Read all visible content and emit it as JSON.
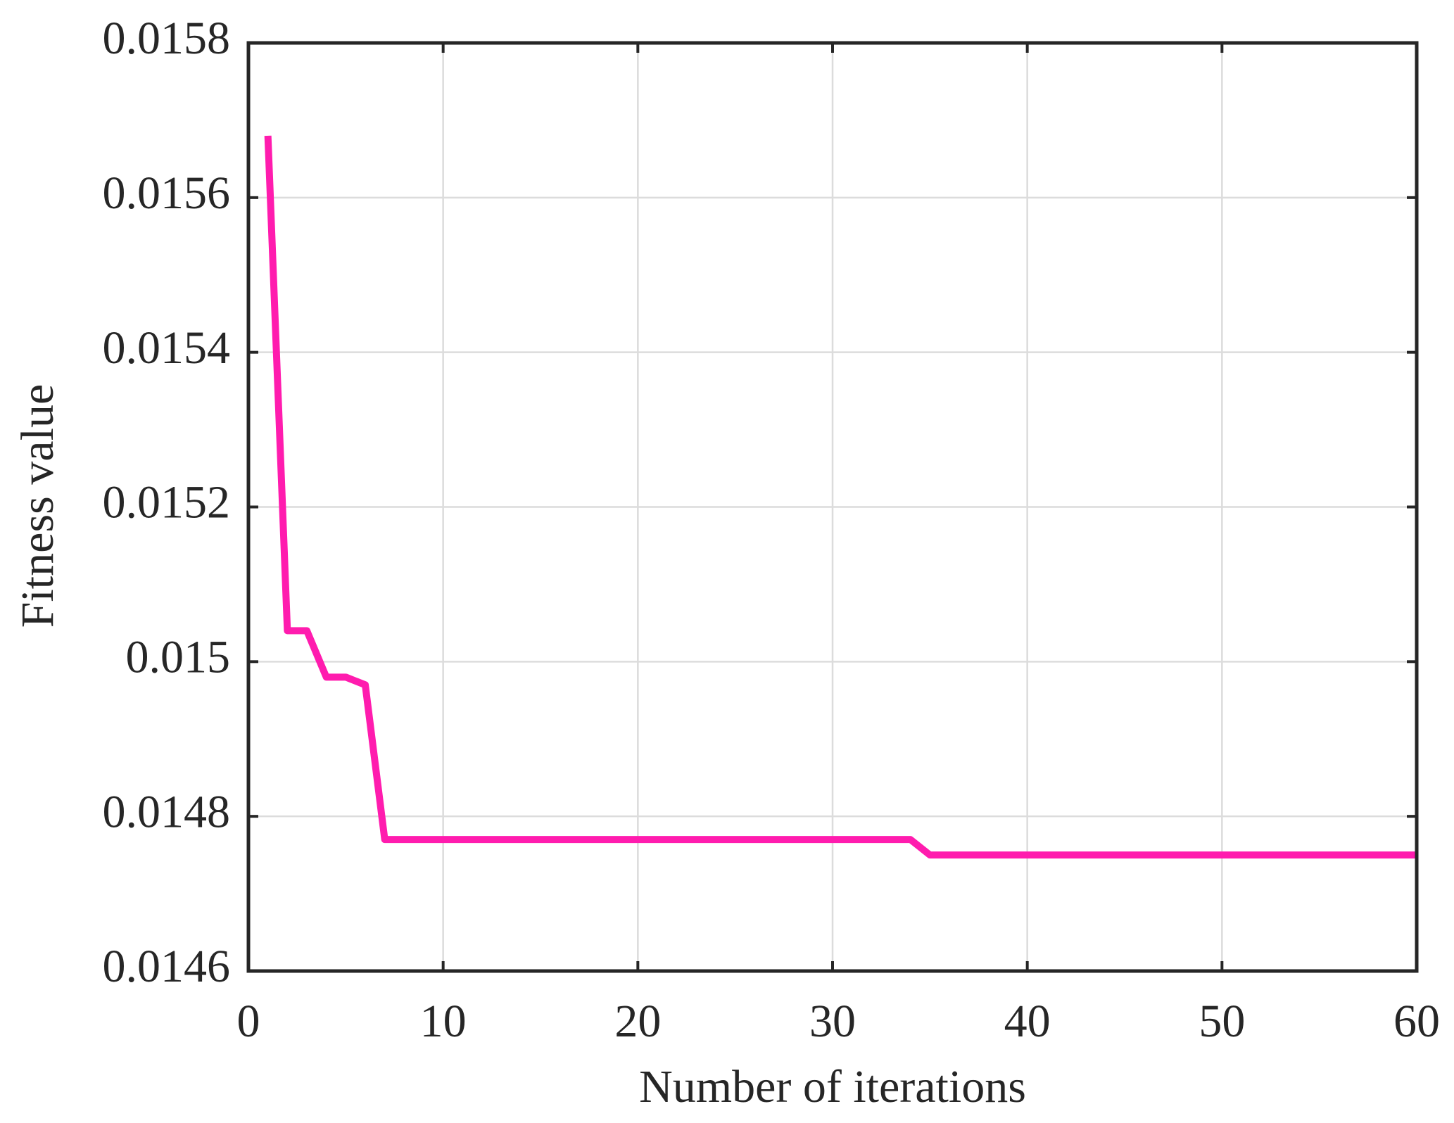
{
  "chart_data": {
    "type": "line",
    "x_label": "Number of iterations",
    "y_label": "Fitness value",
    "x": [
      1,
      2,
      3,
      4,
      5,
      6,
      7,
      8,
      9,
      10,
      11,
      12,
      13,
      14,
      15,
      16,
      17,
      18,
      19,
      20,
      21,
      22,
      23,
      24,
      25,
      26,
      27,
      28,
      29,
      30,
      31,
      32,
      33,
      34,
      35,
      36,
      37,
      38,
      39,
      40,
      41,
      42,
      43,
      44,
      45,
      46,
      47,
      48,
      49,
      50,
      51,
      52,
      53,
      54,
      55,
      56,
      57,
      58,
      59,
      60
    ],
    "values": [
      0.01568,
      0.01504,
      0.01504,
      0.01498,
      0.01498,
      0.01497,
      0.01477,
      0.01477,
      0.01477,
      0.01477,
      0.01477,
      0.01477,
      0.01477,
      0.01477,
      0.01477,
      0.01477,
      0.01477,
      0.01477,
      0.01477,
      0.01477,
      0.01477,
      0.01477,
      0.01477,
      0.01477,
      0.01477,
      0.01477,
      0.01477,
      0.01477,
      0.01477,
      0.01477,
      0.01477,
      0.01477,
      0.01477,
      0.01477,
      0.01475,
      0.01475,
      0.01475,
      0.01475,
      0.01475,
      0.01475,
      0.01475,
      0.01475,
      0.01475,
      0.01475,
      0.01475,
      0.01475,
      0.01475,
      0.01475,
      0.01475,
      0.01475,
      0.01475,
      0.01475,
      0.01475,
      0.01475,
      0.01475,
      0.01475,
      0.01475,
      0.01475,
      0.01475,
      0.01475
    ],
    "color": "#ff1cae",
    "xlim": [
      0,
      60
    ],
    "xticks": [
      0,
      10,
      20,
      30,
      40,
      50,
      60
    ],
    "ylim": [
      0.0146,
      0.0158
    ],
    "yticks": [
      0.0146,
      0.0148,
      0.015,
      0.0152,
      0.0154,
      0.0156,
      0.0158
    ],
    "grid": true
  }
}
